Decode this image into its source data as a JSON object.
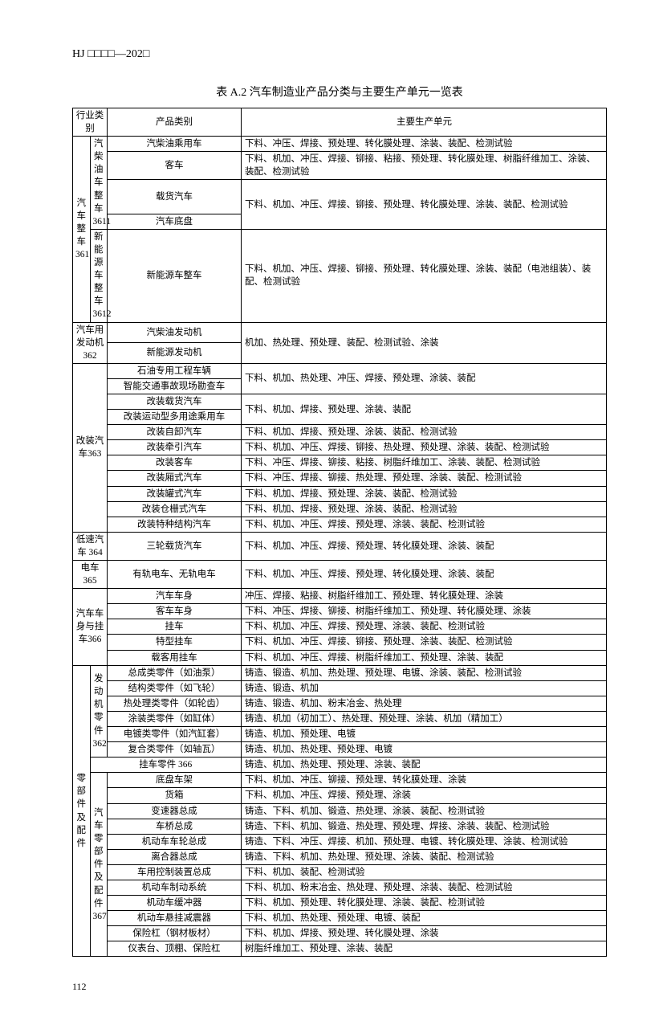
{
  "doc_header": "HJ □□□□—202□",
  "table_title": "表 A.2  汽车制造业产品分类与主要生产单元一览表",
  "headers": {
    "col1": "行业类别",
    "col3": "产品类别",
    "col4": "主要生产单元"
  },
  "page_num": "112",
  "groups": {
    "g1": {
      "label": "汽车整车361",
      "sub1": "汽柴油车整车3611",
      "sub2": "新能源车整车3612"
    },
    "g2": "汽车用发动机362",
    "g3": "改装汽车363",
    "g4": "低速汽车 364",
    "g5": "电车 365",
    "g6": "汽车车身与挂车366",
    "g7": "零部件及配件",
    "g7s1": "发动机零件362",
    "g7s2": "挂车零件 366",
    "g7s3": "汽车零部件及配件367"
  },
  "rows": [
    {
      "prod": "汽柴油乘用车",
      "unit": "下料、冲压、焊接、预处理、转化膜处理、涂装、装配、检测试验"
    },
    {
      "prod": "客车",
      "unit": "下料、机加、冲压、焊接、铆接、粘接、预处理、转化膜处理、树脂纤维加工、涂装、装配、检测试验"
    },
    {
      "prod": "载货汽车",
      "unit": "下料、机加、冲压、焊接、铆接、预处理、转化膜处理、涂装、装配、检测试验"
    },
    {
      "prod": "汽车底盘",
      "unit": ""
    },
    {
      "prod": "新能源车整车",
      "unit": "下料、机加、冲压、焊接、铆接、预处理、转化膜处理、涂装、装配（电池组装）、装配、检测试验"
    },
    {
      "prod": "汽柴油发动机",
      "unit": "机加、热处理、预处理、装配、检测试验、涂装"
    },
    {
      "prod": "新能源发动机",
      "unit": ""
    },
    {
      "prod": "石油专用工程车辆",
      "unit": "下料、机加、热处理、冲压、焊接、预处理、涂装、装配"
    },
    {
      "prod": "智能交通事故现场勘查车",
      "unit": ""
    },
    {
      "prod": "改装载货汽车",
      "unit": "下料、机加、焊接、预处理、涂装、装配"
    },
    {
      "prod": "改装运动型多用途乘用车",
      "unit": ""
    },
    {
      "prod": "改装自卸汽车",
      "unit": "下料、机加、焊接、预处理、涂装、装配、检测试验"
    },
    {
      "prod": "改装牵引汽车",
      "unit": "下料、机加、冲压、焊接、铆接、热处理、预处理、涂装、装配、检测试验"
    },
    {
      "prod": "改装客车",
      "unit": "下料、冲压、焊接、铆接、粘接、树脂纤维加工、涂装、装配、检测试验"
    },
    {
      "prod": "改装厢式汽车",
      "unit": "下料、冲压、焊接、铆接、热处理、预处理、涂装、装配、检测试验"
    },
    {
      "prod": "改装罐式汽车",
      "unit": "下料、机加、焊接、预处理、涂装、装配、检测试验"
    },
    {
      "prod": "改装仓栅式汽车",
      "unit": "下料、机加、焊接、预处理、涂装、装配、检测试验"
    },
    {
      "prod": "改装特种结构汽车",
      "unit": "下料、机加、冲压、焊接、预处理、涂装、装配、检测试验"
    },
    {
      "prod": "三轮载货汽车",
      "unit": "下料、机加、冲压、焊接、预处理、转化膜处理、涂装、装配"
    },
    {
      "prod": "有轨电车、无轨电车",
      "unit": "下料、机加、冲压、焊接、预处理、转化膜处理、涂装、装配"
    },
    {
      "prod": "汽车车身",
      "unit": "冲压、焊接、粘接、树脂纤维加工、预处理、转化膜处理、涂装"
    },
    {
      "prod": "客车车身",
      "unit": "下料、冲压、焊接、铆接、树脂纤维加工、预处理、转化膜处理、涂装"
    },
    {
      "prod": "挂车",
      "unit": "下料、机加、冲压、焊接、预处理、涂装、装配、检测试验"
    },
    {
      "prod": "特型挂车",
      "unit": "下料、机加、冲压、焊接、铆接、预处理、涂装、装配、检测试验"
    },
    {
      "prod": "载客用挂车",
      "unit": "下料、机加、冲压、焊接、树脂纤维加工、预处理、涂装、装配"
    },
    {
      "prod": "总成类零件（如油泵）",
      "unit": "铸造、锻造、机加、热处理、预处理、电镀、涂装、装配、检测试验"
    },
    {
      "prod": "结构类零件（如飞轮）",
      "unit": "铸造、锻造、机加"
    },
    {
      "prod": "热处理类零件（如轮齿）",
      "unit": "铸造、锻造、机加、粉末冶金、热处理"
    },
    {
      "prod": "涂装类零件（如缸体）",
      "unit": "铸造、机加（初加工）、热处理、预处理、涂装、机加（精加工）"
    },
    {
      "prod": "电镀类零件（如汽缸套）",
      "unit": "铸造、机加、预处理、电镀"
    },
    {
      "prod": "复合类零件（如轴瓦）",
      "unit": "铸造、机加、热处理、预处理、电镀"
    },
    {
      "prod": "",
      "unit": "铸造、机加、热处理、预处理、涂装、装配"
    },
    {
      "prod": "底盘车架",
      "unit": "下料、机加、冲压、铆接、预处理、转化膜处理、涂装"
    },
    {
      "prod": "货箱",
      "unit": "下料、机加、冲压、焊接、预处理、涂装"
    },
    {
      "prod": "变速器总成",
      "unit": "铸造、下料、机加、锻造、热处理、涂装、装配、检测试验"
    },
    {
      "prod": "车桥总成",
      "unit": "铸造、下料、机加、锻造、热处理、预处理、焊接、涂装、装配、检测试验"
    },
    {
      "prod": "机动车车轮总成",
      "unit": "铸造、下料、冲压、焊接、机加、预处理、电镀、转化膜处理、涂装、检测试验"
    },
    {
      "prod": "离合器总成",
      "unit": "铸造、下料、机加、热处理、预处理、涂装、装配、检测试验"
    },
    {
      "prod": "车用控制装置总成",
      "unit": "下料、机加、装配、检测试验"
    },
    {
      "prod": "机动车制动系统",
      "unit": "下料、机加、粉末冶金、热处理、预处理、涂装、装配、检测试验"
    },
    {
      "prod": "机动车缓冲器",
      "unit": "下料、机加、预处理、转化膜处理、涂装、装配、检测试验"
    },
    {
      "prod": "机动车悬挂减震器",
      "unit": "下料、机加、热处理、预处理、电镀、装配"
    },
    {
      "prod": "保险杠（钢材板材）",
      "unit": "下料、机加、焊接、预处理、转化膜处理、涂装"
    },
    {
      "prod": "仪表台、顶棚、保险杠",
      "unit": "树脂纤维加工、预处理、涂装、装配"
    }
  ]
}
